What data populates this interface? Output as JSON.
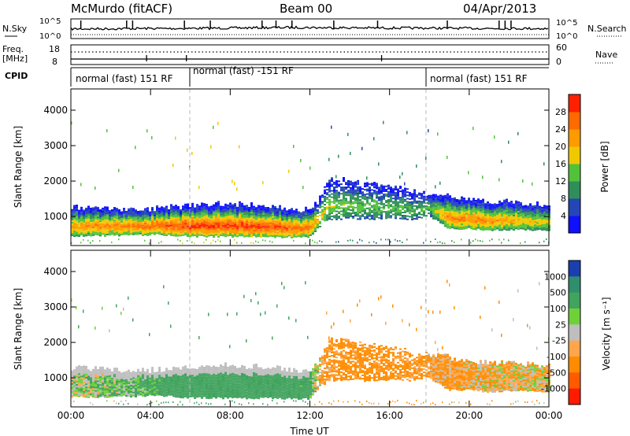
{
  "header": {
    "station": "McMurdo (fitACF)",
    "beam": "Beam 00",
    "date": "04/Apr/2013"
  },
  "colors": {
    "power_scale": [
      "#1010ff",
      "#2446b6",
      "#2f8e5a",
      "#52c23a",
      "#f0c800",
      "#ff9a00",
      "#ff6a00",
      "#ff2000"
    ],
    "velocity_scale": [
      "#1a3fb0",
      "#2f8e6e",
      "#41a35e",
      "#6fd03a",
      "#bebebe",
      "#ffa64d",
      "#ff8c00",
      "#ff5a00",
      "#ff1a00"
    ]
  },
  "chart_data": [
    {
      "type": "line",
      "panel": "noise",
      "left_label": "N.Sky",
      "right_label": "N.Search",
      "left_ticks": [
        "10^5",
        "10^0"
      ],
      "right_ticks": [
        "10^5",
        "10^0"
      ],
      "x_range_hours": [
        0,
        24
      ],
      "series": [
        {
          "name": "N.Sky",
          "x": [
            0,
            1,
            2,
            3,
            4,
            5,
            6,
            7,
            8,
            9,
            10,
            11,
            12,
            13,
            14,
            15,
            16,
            17,
            18,
            19,
            20,
            21,
            22,
            23,
            24
          ],
          "values": [
            40,
            45,
            50,
            60,
            70,
            65,
            80,
            90,
            110,
            140,
            180,
            220,
            200,
            160,
            150,
            130,
            120,
            110,
            100,
            90,
            80,
            75,
            70,
            65,
            60
          ]
        }
      ]
    },
    {
      "type": "line",
      "panel": "frequency",
      "left_label": "Freq.",
      "left_unit": "[MHz]",
      "right_label": "Nave",
      "left_ticks": [
        "18",
        "8"
      ],
      "right_ticks": [
        "60",
        "0"
      ],
      "x_range_hours": [
        0,
        24
      ]
    },
    {
      "type": "table",
      "panel": "cpid",
      "label": "CPID",
      "segments": [
        {
          "start_hour": 0,
          "end_hour": 6,
          "text": "normal (fast) 151 RF"
        },
        {
          "start_hour": 6,
          "end_hour": 18,
          "text": "normal (fast) -151 RF"
        },
        {
          "start_hour": 18,
          "end_hour": 24,
          "text": "normal (fast) 151 RF"
        }
      ]
    },
    {
      "type": "heatmap",
      "panel": "power",
      "ylabel": "Slant Range [km]",
      "ylim": [
        180,
        4600
      ],
      "y_ticks": [
        1000,
        2000,
        3000,
        4000
      ],
      "xlim_hours": [
        0,
        24
      ],
      "colorbar_label": "Power [dB]",
      "colorbar_ticks": [
        "4",
        "8",
        "12",
        "16",
        "20",
        "24",
        "28"
      ],
      "band": {
        "hours": [
          0,
          1,
          2,
          3,
          4,
          5,
          6,
          7,
          8,
          9,
          10,
          11,
          12,
          12.5,
          13,
          14,
          15,
          16,
          17,
          18,
          19,
          20,
          21,
          22,
          23,
          24
        ],
        "lower_km": [
          450,
          450,
          460,
          470,
          480,
          470,
          430,
          430,
          420,
          420,
          420,
          410,
          400,
          700,
          900,
          950,
          900,
          950,
          900,
          1000,
          650,
          650,
          600,
          620,
          620,
          600
        ],
        "upper_km": [
          1250,
          1250,
          1220,
          1180,
          1200,
          1250,
          1300,
          1320,
          1350,
          1300,
          1280,
          1200,
          1150,
          1500,
          2050,
          2000,
          1900,
          1850,
          1700,
          1650,
          1550,
          1450,
          1400,
          1400,
          1350,
          1300
        ],
        "peak_db": [
          22,
          24,
          25,
          26,
          27,
          28,
          30,
          30,
          30,
          30,
          29,
          28,
          26,
          20,
          16,
          15,
          14,
          14,
          13,
          14,
          24,
          25,
          24,
          22,
          20,
          18
        ]
      }
    },
    {
      "type": "heatmap",
      "panel": "velocity",
      "ylabel": "Slant Range [km]",
      "ylim": [
        180,
        4600
      ],
      "y_ticks": [
        1000,
        2000,
        3000,
        4000
      ],
      "xlim_hours": [
        0,
        24
      ],
      "xlabel": "Time UT",
      "x_ticks": [
        "00:00",
        "04:00",
        "08:00",
        "12:00",
        "16:00",
        "20:00",
        "00:00"
      ],
      "colorbar_label": "Velocity [m s⁻¹]",
      "colorbar_ticks": [
        "1000",
        "500",
        "100",
        "25",
        "-25",
        "-100",
        "-500",
        "-1000"
      ],
      "band": {
        "hours": [
          0,
          1,
          2,
          3,
          4,
          5,
          6,
          7,
          8,
          9,
          10,
          11,
          12,
          12.5,
          13,
          14,
          15,
          16,
          17,
          18,
          19,
          20,
          21,
          22,
          23,
          24
        ],
        "lower_km": [
          450,
          450,
          460,
          470,
          480,
          470,
          430,
          430,
          420,
          420,
          420,
          410,
          400,
          700,
          900,
          950,
          900,
          950,
          900,
          1000,
          650,
          650,
          600,
          620,
          620,
          600
        ],
        "upper_km": [
          1250,
          1250,
          1220,
          1180,
          1200,
          1250,
          1300,
          1320,
          1350,
          1300,
          1280,
          1200,
          1150,
          1500,
          2050,
          2000,
          1900,
          1850,
          1700,
          1650,
          1550,
          1450,
          1400,
          1400,
          1350,
          1300
        ],
        "velocity_ms": [
          30,
          60,
          80,
          100,
          150,
          250,
          300,
          300,
          320,
          300,
          280,
          250,
          200,
          -80,
          -150,
          -200,
          -200,
          -180,
          -150,
          -120,
          -100,
          -90,
          -80,
          -60,
          -40,
          -30
        ]
      }
    }
  ]
}
